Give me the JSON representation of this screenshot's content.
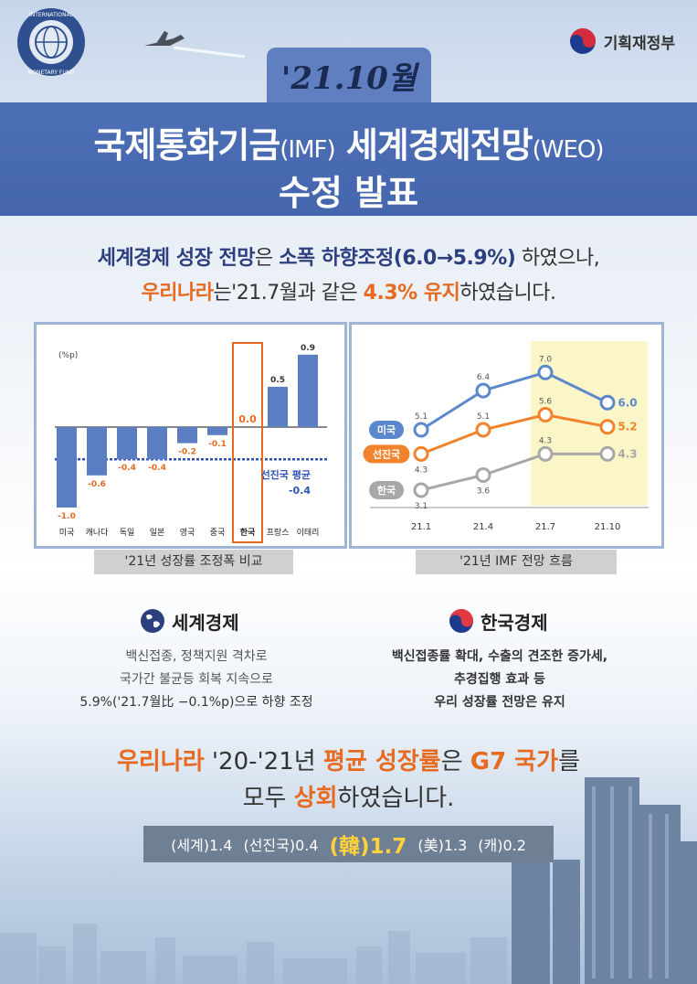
{
  "header": {
    "ministry": "기획재정부",
    "date": "'21.10월",
    "title_a": "국제통화기금",
    "title_b": "(IMF)",
    "title_c": " 세계경제전망",
    "title_d": "(WEO)",
    "title_line2": "수정 발표",
    "seal_text": "INTERNATIONAL MONETARY FUND"
  },
  "headline": {
    "l1_a": "세계경제 성장 전망",
    "l1_b": "은 ",
    "l1_c": "소폭 하향조정(6.0→5.9%)",
    "l1_d": " 하였으나,",
    "l2_a": "우리나라",
    "l2_b": "는'21.7월과 같은 ",
    "l2_c": "4.3% 유지",
    "l2_d": "하였습니다."
  },
  "chart_data": [
    {
      "type": "bar",
      "title": "'21년 성장률 조정폭 비교",
      "ylabel": "(%p)",
      "categories": [
        "미국",
        "캐나다",
        "독일",
        "일본",
        "영국",
        "중국",
        "한국",
        "프랑스",
        "이태리"
      ],
      "values": [
        -1.0,
        -0.6,
        -0.4,
        -0.4,
        -0.2,
        -0.1,
        0.0,
        0.5,
        0.9
      ],
      "value_labels": [
        "-1.0",
        "-0.6",
        "-0.4",
        "-0.4",
        "-0.2",
        "-0.1",
        "0.0",
        "0.5",
        "0.9"
      ],
      "highlight": "한국",
      "reference_line": {
        "label": "선진국 평균",
        "value": -0.4,
        "value_label": "-0.4"
      },
      "colors": {
        "bar": "#5b7ec2",
        "highlight_label": "#e66a1f",
        "reference": "#2f52b8"
      }
    },
    {
      "type": "line",
      "title": "'21년 IMF 전망 흐름",
      "x": [
        "21.1",
        "21.4",
        "21.7",
        "21.10"
      ],
      "highlight_range": [
        "21.7",
        "21.10"
      ],
      "series": [
        {
          "name": "미국",
          "values": [
            5.1,
            6.4,
            7.0,
            6.0
          ],
          "labels": [
            "5.1",
            "6.4",
            "7.0",
            "6.0"
          ],
          "color": "#5b88cc"
        },
        {
          "name": "선진국",
          "values": [
            4.3,
            5.1,
            5.6,
            5.2
          ],
          "labels": [
            "4.3",
            "5.1",
            "5.6",
            "5.2"
          ],
          "color": "#f0832b"
        },
        {
          "name": "한국",
          "values": [
            3.1,
            3.6,
            4.3,
            4.3
          ],
          "labels": [
            "3.1",
            "3.6",
            "4.3",
            "4.3"
          ],
          "color": "#a8a8a8"
        }
      ]
    }
  ],
  "sections": {
    "world": {
      "title": "세계경제",
      "l1": "백신접종, 정책지원 격차로",
      "l2": "국가간 불균등 회복 지속으로",
      "l3": "5.9%('21.7월比 −0.1%p)으로 하향 조정"
    },
    "korea": {
      "title": "한국경제",
      "l1": "백신접종률 확대, 수출의 견조한 증가세,",
      "l2": "추경집행 효과 등",
      "l3": "우리 성장률 전망은 유지"
    }
  },
  "bottom": {
    "a": "우리나라",
    "b": " '20-'21년 ",
    "c": "평균 성장률",
    "d": "은 ",
    "e": "G7 국가",
    "f": "를",
    "g": "모두 ",
    "h": "상회",
    "i": "하였습니다.",
    "stats": [
      "(세계)1.4",
      "(선진국)0.4",
      "(韓)1.7",
      "(美)1.3",
      "(캐)0.2"
    ]
  }
}
